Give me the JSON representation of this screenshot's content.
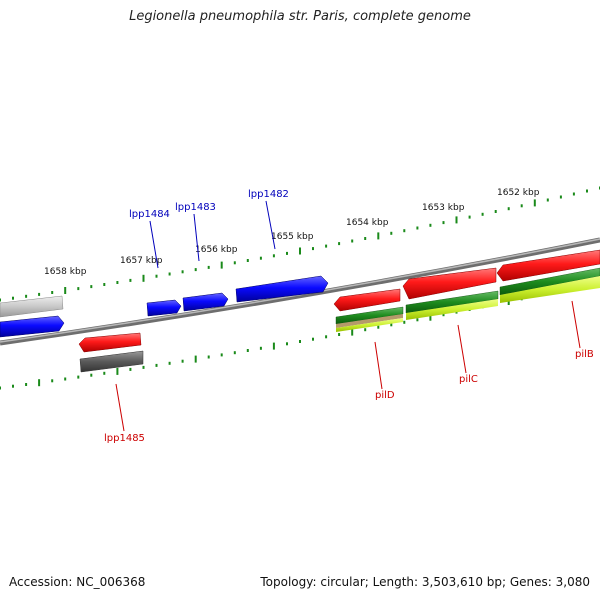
{
  "title": "Legionella pneumophila str. Paris, complete genome",
  "footer": {
    "accession": "Accession: NC_006368",
    "summary": "Topology: circular; Length: 3,503,610 bp; Genes: 3,080"
  },
  "ticks": [
    "1652 kbp",
    "1653 kbp",
    "1654 kbp",
    "1655 kbp",
    "1656 kbp",
    "1657 kbp",
    "1658 kbp"
  ],
  "gene_labels": {
    "lpp1484": "lpp1484",
    "lpp1483": "lpp1483",
    "lpp1482": "lpp1482",
    "lpp1485": "lpp1485",
    "pilD": "pilD",
    "pilC": "pilC",
    "pilB": "pilB"
  },
  "colors": {
    "forward_label": "#0000bb",
    "reverse_label": "#cc0000",
    "tick": "#1a8a1a",
    "backbone": "#808080"
  }
}
